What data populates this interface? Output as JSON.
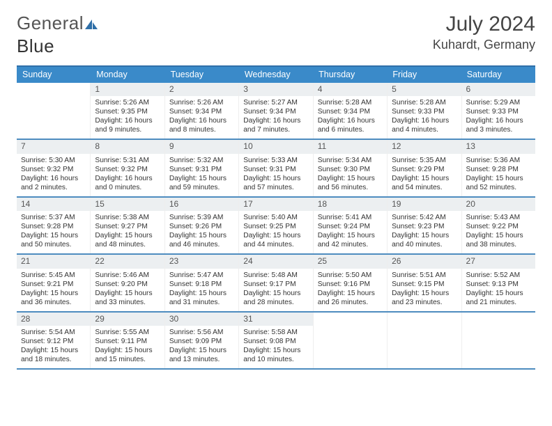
{
  "logo": {
    "text1": "General",
    "text2": "Blue"
  },
  "title": "July 2024",
  "location": "Kuhardt, Germany",
  "colors": {
    "header_bar": "#3a8ac9",
    "row_divider": "#4d8cbf",
    "daynum_bg": "#eceff1",
    "top_border": "#2f6fa8",
    "logo_accent": "#2f6fa8"
  },
  "weekdays": [
    "Sunday",
    "Monday",
    "Tuesday",
    "Wednesday",
    "Thursday",
    "Friday",
    "Saturday"
  ],
  "weeks": [
    [
      {
        "empty": true
      },
      {
        "n": "1",
        "sunrise": "5:26 AM",
        "sunset": "9:35 PM",
        "dayh": "16",
        "daym": "9"
      },
      {
        "n": "2",
        "sunrise": "5:26 AM",
        "sunset": "9:34 PM",
        "dayh": "16",
        "daym": "8"
      },
      {
        "n": "3",
        "sunrise": "5:27 AM",
        "sunset": "9:34 PM",
        "dayh": "16",
        "daym": "7"
      },
      {
        "n": "4",
        "sunrise": "5:28 AM",
        "sunset": "9:34 PM",
        "dayh": "16",
        "daym": "6"
      },
      {
        "n": "5",
        "sunrise": "5:28 AM",
        "sunset": "9:33 PM",
        "dayh": "16",
        "daym": "4"
      },
      {
        "n": "6",
        "sunrise": "5:29 AM",
        "sunset": "9:33 PM",
        "dayh": "16",
        "daym": "3"
      }
    ],
    [
      {
        "n": "7",
        "sunrise": "5:30 AM",
        "sunset": "9:32 PM",
        "dayh": "16",
        "daym": "2"
      },
      {
        "n": "8",
        "sunrise": "5:31 AM",
        "sunset": "9:32 PM",
        "dayh": "16",
        "daym": "0"
      },
      {
        "n": "9",
        "sunrise": "5:32 AM",
        "sunset": "9:31 PM",
        "dayh": "15",
        "daym": "59"
      },
      {
        "n": "10",
        "sunrise": "5:33 AM",
        "sunset": "9:31 PM",
        "dayh": "15",
        "daym": "57"
      },
      {
        "n": "11",
        "sunrise": "5:34 AM",
        "sunset": "9:30 PM",
        "dayh": "15",
        "daym": "56"
      },
      {
        "n": "12",
        "sunrise": "5:35 AM",
        "sunset": "9:29 PM",
        "dayh": "15",
        "daym": "54"
      },
      {
        "n": "13",
        "sunrise": "5:36 AM",
        "sunset": "9:28 PM",
        "dayh": "15",
        "daym": "52"
      }
    ],
    [
      {
        "n": "14",
        "sunrise": "5:37 AM",
        "sunset": "9:28 PM",
        "dayh": "15",
        "daym": "50"
      },
      {
        "n": "15",
        "sunrise": "5:38 AM",
        "sunset": "9:27 PM",
        "dayh": "15",
        "daym": "48"
      },
      {
        "n": "16",
        "sunrise": "5:39 AM",
        "sunset": "9:26 PM",
        "dayh": "15",
        "daym": "46"
      },
      {
        "n": "17",
        "sunrise": "5:40 AM",
        "sunset": "9:25 PM",
        "dayh": "15",
        "daym": "44"
      },
      {
        "n": "18",
        "sunrise": "5:41 AM",
        "sunset": "9:24 PM",
        "dayh": "15",
        "daym": "42"
      },
      {
        "n": "19",
        "sunrise": "5:42 AM",
        "sunset": "9:23 PM",
        "dayh": "15",
        "daym": "40"
      },
      {
        "n": "20",
        "sunrise": "5:43 AM",
        "sunset": "9:22 PM",
        "dayh": "15",
        "daym": "38"
      }
    ],
    [
      {
        "n": "21",
        "sunrise": "5:45 AM",
        "sunset": "9:21 PM",
        "dayh": "15",
        "daym": "36"
      },
      {
        "n": "22",
        "sunrise": "5:46 AM",
        "sunset": "9:20 PM",
        "dayh": "15",
        "daym": "33"
      },
      {
        "n": "23",
        "sunrise": "5:47 AM",
        "sunset": "9:18 PM",
        "dayh": "15",
        "daym": "31"
      },
      {
        "n": "24",
        "sunrise": "5:48 AM",
        "sunset": "9:17 PM",
        "dayh": "15",
        "daym": "28"
      },
      {
        "n": "25",
        "sunrise": "5:50 AM",
        "sunset": "9:16 PM",
        "dayh": "15",
        "daym": "26"
      },
      {
        "n": "26",
        "sunrise": "5:51 AM",
        "sunset": "9:15 PM",
        "dayh": "15",
        "daym": "23"
      },
      {
        "n": "27",
        "sunrise": "5:52 AM",
        "sunset": "9:13 PM",
        "dayh": "15",
        "daym": "21"
      }
    ],
    [
      {
        "n": "28",
        "sunrise": "5:54 AM",
        "sunset": "9:12 PM",
        "dayh": "15",
        "daym": "18"
      },
      {
        "n": "29",
        "sunrise": "5:55 AM",
        "sunset": "9:11 PM",
        "dayh": "15",
        "daym": "15"
      },
      {
        "n": "30",
        "sunrise": "5:56 AM",
        "sunset": "9:09 PM",
        "dayh": "15",
        "daym": "13"
      },
      {
        "n": "31",
        "sunrise": "5:58 AM",
        "sunset": "9:08 PM",
        "dayh": "15",
        "daym": "10"
      },
      {
        "empty": true
      },
      {
        "empty": true
      },
      {
        "empty": true
      }
    ]
  ]
}
